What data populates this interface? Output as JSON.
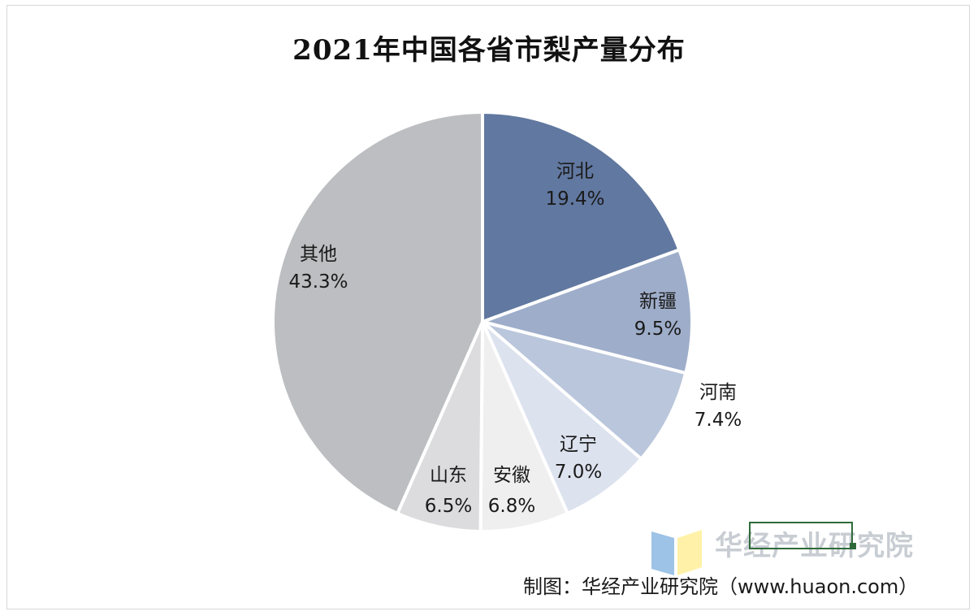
{
  "chart_data": {
    "type": "pie",
    "title": "2021年中国各省市梨产量分布",
    "slices": [
      {
        "label": "河北",
        "value": 19.4,
        "value_label": "19.4%",
        "color": "#6178a0"
      },
      {
        "label": "新疆",
        "value": 9.5,
        "value_label": "9.5%",
        "color": "#9eadc9"
      },
      {
        "label": "河南",
        "value": 7.4,
        "value_label": "7.4%",
        "color": "#bac6db"
      },
      {
        "label": "辽宁",
        "value": 7.0,
        "value_label": "7.0%",
        "color": "#dce2ee"
      },
      {
        "label": "安徽",
        "value": 6.8,
        "value_label": "6.8%",
        "color": "#efeff0"
      },
      {
        "label": "山东",
        "value": 6.5,
        "value_label": "6.5%",
        "color": "#dcdcde"
      },
      {
        "label": "其他",
        "value": 43.3,
        "value_label": "43.3%",
        "color": "#bcbec1"
      }
    ],
    "start": "12 o'clock",
    "direction": "clockwise"
  },
  "watermark": {
    "text": "华经产业研究院",
    "colors": [
      "#9dc3e6",
      "#fff2a8"
    ]
  },
  "source": "制图：华经产业研究院（www.huaon.com）"
}
